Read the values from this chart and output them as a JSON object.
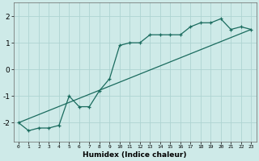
{
  "xlabel": "Humidex (Indice chaleur)",
  "ylabel": "",
  "bg_color": "#ceeae8",
  "grid_color": "#aed4d2",
  "line_color": "#1a6b5e",
  "xlim": [
    -0.5,
    23.5
  ],
  "ylim": [
    -2.7,
    2.5
  ],
  "yticks": [
    -2,
    -1,
    0,
    1,
    2
  ],
  "xtick_labels": [
    "0",
    "1",
    "2",
    "3",
    "4",
    "5",
    "6",
    "7",
    "8",
    "9",
    "10",
    "11",
    "12",
    "13",
    "14",
    "15",
    "16",
    "17",
    "18",
    "19",
    "20",
    "21",
    "22",
    "23"
  ],
  "line1_x": [
    0,
    1,
    2,
    3,
    4,
    5,
    6,
    7,
    8,
    9,
    10,
    11,
    12,
    13,
    14,
    15,
    16,
    17,
    18,
    19,
    20,
    21,
    22,
    23
  ],
  "line1_y": [
    -2.0,
    -2.3,
    -2.2,
    -2.2,
    -2.1,
    -1.0,
    -1.4,
    -1.4,
    -0.8,
    -0.35,
    0.9,
    1.0,
    1.0,
    1.3,
    1.3,
    1.3,
    1.3,
    1.6,
    1.75,
    1.75,
    1.9,
    1.5,
    1.6,
    1.5
  ],
  "line2_x": [
    0,
    23
  ],
  "line2_y": [
    -2.0,
    1.5
  ]
}
